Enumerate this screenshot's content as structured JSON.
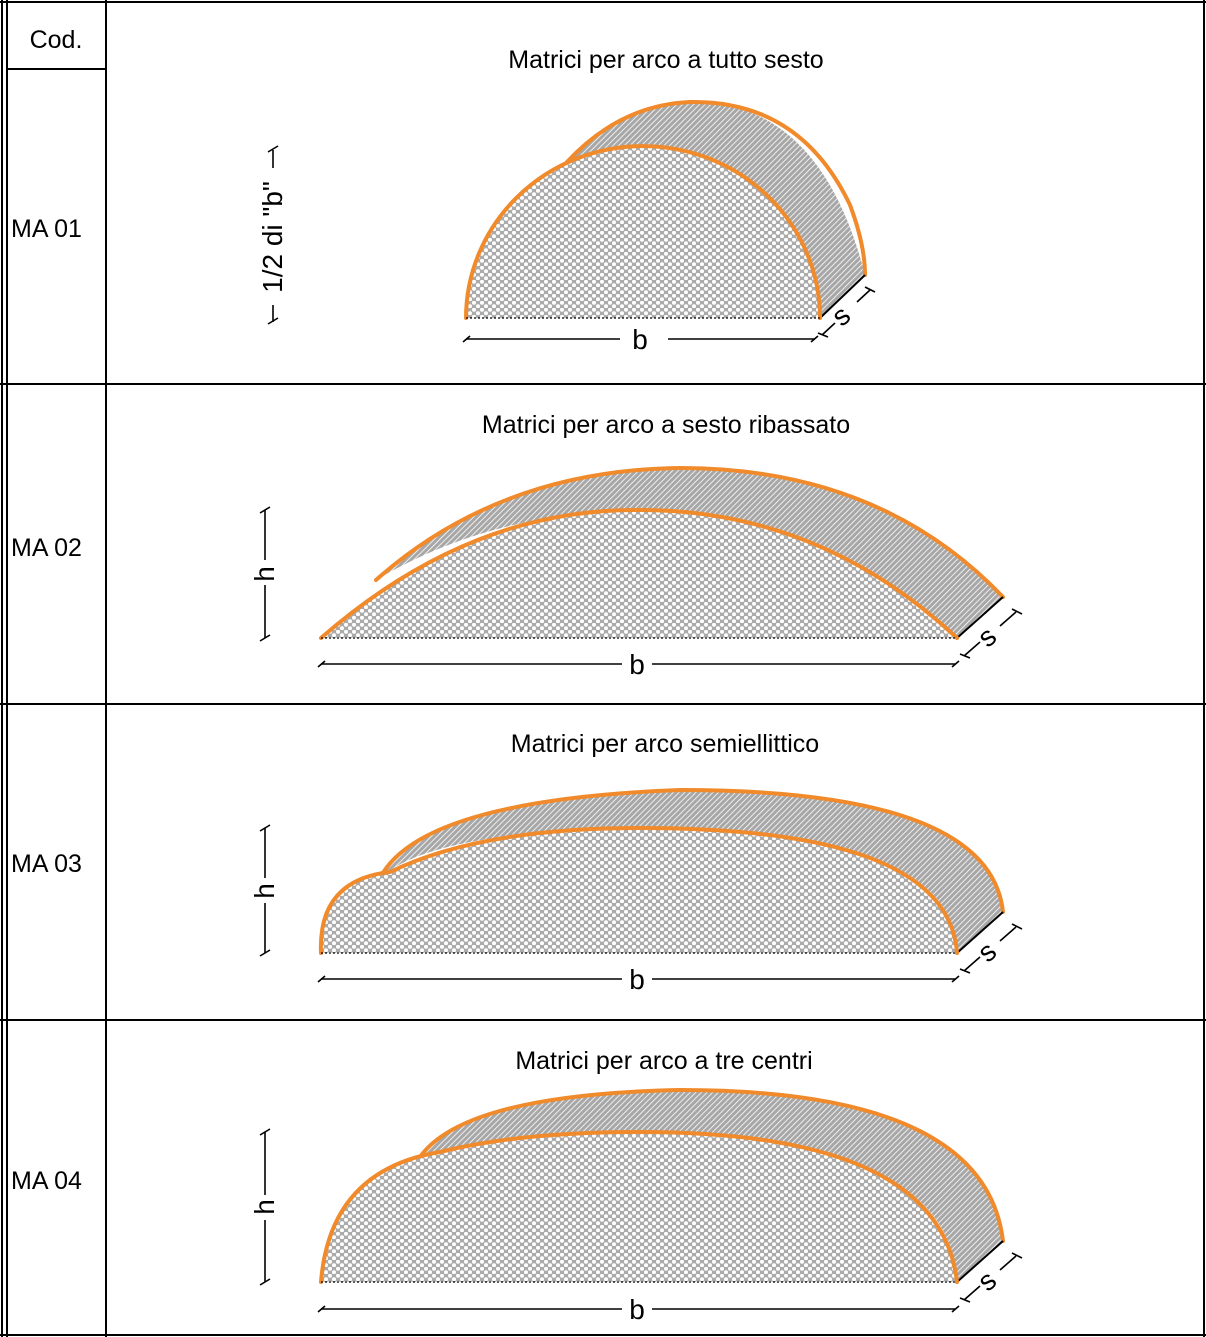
{
  "header": {
    "code_label": "Cod."
  },
  "rows": [
    {
      "code": "MA 01",
      "title": "Matrici per arco a tutto sesto",
      "height_label": "1/2 di \"b\"",
      "width_label": "b",
      "depth_label": "s"
    },
    {
      "code": "MA 02",
      "title": "Matrici per arco a sesto ribassato",
      "height_label": "h",
      "width_label": "b",
      "depth_label": "s"
    },
    {
      "code": "MA 03",
      "title": "Matrici per arco semiellittico",
      "height_label": "h",
      "width_label": "b",
      "depth_label": "s"
    },
    {
      "code": "MA 04",
      "title": "Matrici per arco a tre centri",
      "height_label": "h",
      "width_label": "b",
      "depth_label": "s"
    }
  ],
  "colors": {
    "arch_outline": "#f08a2a",
    "dot_fill_bg": "#ababab",
    "hatch_bg": "#a7a7a7",
    "grid": "#000000"
  }
}
